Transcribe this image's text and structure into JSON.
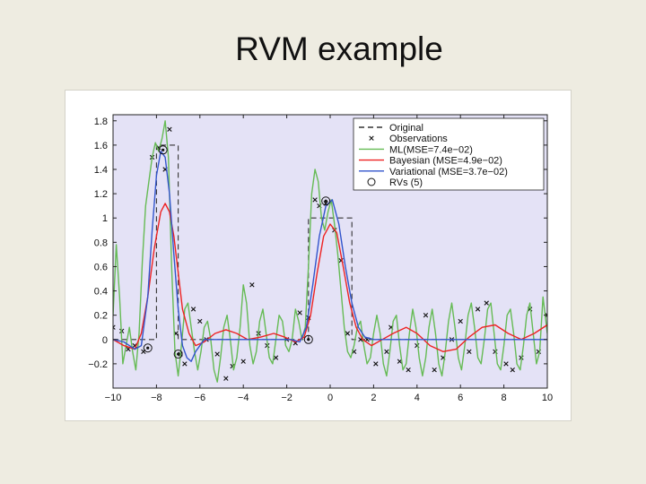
{
  "slide": {
    "title": "RVM example"
  },
  "chart_data": {
    "type": "line",
    "xlim": [
      -10,
      10
    ],
    "ylim": [
      -0.4,
      1.85
    ],
    "xticks": [
      -10,
      -8,
      -6,
      -4,
      -2,
      0,
      2,
      4,
      6,
      8,
      10
    ],
    "xtick_labels": [
      "-10",
      "-8",
      "-6",
      "-4",
      "-2",
      "0",
      "2",
      "4",
      "6",
      "8",
      "10"
    ],
    "yticks": [
      -0.2,
      0,
      0.2,
      0.4,
      0.6,
      0.8,
      1,
      1.2,
      1.4,
      1.6,
      1.8
    ],
    "ytick_labels": [
      "-0.2",
      "0",
      "0.2",
      "0.4",
      "0.6",
      "0.8",
      "1",
      "1.2",
      "1.4",
      "1.6",
      "1.8"
    ],
    "legend_position": "top-right",
    "colors": {
      "plot_background": "#e4e2f6",
      "original": "#333333",
      "ml": "#66bb55",
      "bayesian": "#ee2222",
      "variational": "#3355cc"
    },
    "series": [
      {
        "name": "Original",
        "style": "dashed",
        "x": [
          -10,
          -8,
          -8,
          -7,
          -7,
          -1,
          -1,
          1,
          1,
          10
        ],
        "y": [
          0,
          0,
          1.6,
          1.6,
          0,
          0,
          1,
          1,
          0,
          0
        ]
      },
      {
        "name": "Observations",
        "style": "markers",
        "x": [
          -10,
          -9.6,
          -9.3,
          -9,
          -8.6,
          -8.2,
          -7.9,
          -7.6,
          -7.4,
          -7.1,
          -6.9,
          -6.7,
          -6.3,
          -6,
          -5.7,
          -5.2,
          -4.8,
          -4.5,
          -4,
          -3.6,
          -3.3,
          -2.9,
          -2.5,
          -2,
          -1.6,
          -1.4,
          -1,
          -0.7,
          -0.5,
          -0.2,
          0.2,
          0.5,
          0.8,
          1.1,
          1.4,
          1.7,
          2.1,
          2.6,
          2.8,
          3.2,
          3.6,
          4,
          4.4,
          4.8,
          5.2,
          5.6,
          6,
          6.4,
          6.8,
          7.2,
          7.6,
          8.1,
          8.4,
          8.8,
          9.2,
          9.6,
          10
        ],
        "y": [
          0.1,
          0.07,
          -0.08,
          -0.05,
          -0.1,
          1.5,
          1.58,
          1.4,
          1.73,
          0.05,
          -0.12,
          -0.2,
          0.25,
          0.15,
          0.0,
          -0.12,
          -0.32,
          -0.22,
          -0.18,
          0.45,
          0.05,
          -0.05,
          -0.15,
          0.0,
          -0.03,
          0.22,
          0.18,
          1.15,
          1.1,
          1.12,
          0.9,
          0.65,
          0.05,
          -0.1,
          0.0,
          0.0,
          -0.2,
          -0.1,
          0.1,
          -0.18,
          -0.25,
          -0.05,
          0.2,
          -0.25,
          -0.15,
          0.0,
          0.15,
          -0.1,
          0.25,
          0.3,
          -0.1,
          -0.2,
          -0.25,
          -0.15,
          0.25,
          -0.1,
          0.2
        ]
      },
      {
        "name": "ML(MSE=7.4e−02)",
        "style": "solid",
        "x": [
          -10,
          -9.85,
          -9.7,
          -9.55,
          -9.4,
          -9.25,
          -9.1,
          -8.95,
          -8.8,
          -8.65,
          -8.5,
          -8.35,
          -8.2,
          -8.05,
          -7.9,
          -7.75,
          -7.6,
          -7.45,
          -7.3,
          -7.15,
          -7,
          -6.85,
          -6.7,
          -6.55,
          -6.4,
          -6.25,
          -6.1,
          -5.95,
          -5.8,
          -5.65,
          -5.5,
          -5.35,
          -5.2,
          -5.05,
          -4.9,
          -4.75,
          -4.6,
          -4.45,
          -4.3,
          -4.15,
          -4,
          -3.85,
          -3.7,
          -3.55,
          -3.4,
          -3.25,
          -3.1,
          -2.95,
          -2.8,
          -2.65,
          -2.5,
          -2.35,
          -2.2,
          -2.05,
          -1.9,
          -1.75,
          -1.6,
          -1.45,
          -1.3,
          -1.15,
          -1,
          -0.85,
          -0.7,
          -0.55,
          -0.4,
          -0.25,
          -0.1,
          0.05,
          0.2,
          0.35,
          0.5,
          0.65,
          0.8,
          0.95,
          1.1,
          1.25,
          1.4,
          1.55,
          1.7,
          1.85,
          2,
          2.15,
          2.3,
          2.45,
          2.6,
          2.75,
          2.9,
          3.05,
          3.2,
          3.35,
          3.5,
          3.65,
          3.8,
          3.95,
          4.1,
          4.25,
          4.4,
          4.55,
          4.7,
          4.85,
          5,
          5.15,
          5.3,
          5.45,
          5.6,
          5.75,
          5.9,
          6.05,
          6.2,
          6.35,
          6.5,
          6.65,
          6.8,
          6.95,
          7.1,
          7.25,
          7.4,
          7.55,
          7.7,
          7.85,
          8,
          8.15,
          8.3,
          8.45,
          8.6,
          8.75,
          8.9,
          9.05,
          9.2,
          9.35,
          9.5,
          9.65,
          9.8,
          10
        ],
        "y": [
          0.2,
          0.78,
          0.35,
          -0.2,
          -0.05,
          0.1,
          -0.1,
          -0.25,
          0.05,
          0.65,
          1.1,
          1.3,
          1.5,
          1.62,
          1.55,
          1.65,
          1.8,
          1.5,
          0.6,
          -0.1,
          -0.3,
          -0.05,
          0.25,
          0.3,
          0.1,
          -0.1,
          -0.25,
          -0.1,
          0.1,
          0.15,
          0.0,
          -0.25,
          -0.35,
          -0.15,
          0.1,
          0.2,
          0.0,
          -0.25,
          -0.15,
          0.1,
          0.45,
          0.3,
          -0.05,
          -0.2,
          -0.1,
          0.15,
          0.25,
          0.05,
          -0.15,
          -0.2,
          0.0,
          0.2,
          0.15,
          -0.05,
          -0.1,
          0.0,
          0.25,
          0.15,
          0.0,
          0.1,
          0.6,
          1.2,
          1.4,
          1.3,
          1.0,
          0.9,
          1.05,
          1.15,
          0.95,
          0.7,
          0.4,
          0.1,
          -0.1,
          -0.15,
          -0.05,
          0.1,
          0.15,
          -0.05,
          -0.2,
          -0.15,
          0.05,
          0.2,
          0.05,
          -0.2,
          -0.3,
          -0.1,
          0.15,
          0.2,
          -0.05,
          -0.25,
          -0.2,
          0.05,
          0.25,
          0.1,
          -0.15,
          -0.3,
          -0.15,
          0.1,
          0.25,
          0.05,
          -0.2,
          -0.3,
          -0.1,
          0.15,
          0.3,
          0.1,
          -0.15,
          -0.25,
          -0.05,
          0.2,
          0.3,
          0.1,
          -0.15,
          -0.2,
          0.0,
          0.25,
          0.3,
          0.05,
          -0.2,
          -0.25,
          -0.05,
          0.2,
          0.25,
          0.05,
          -0.2,
          -0.25,
          -0.05,
          0.2,
          0.3,
          0.05,
          -0.2,
          -0.1,
          0.35,
          0.05
        ]
      },
      {
        "name": "Bayesian (MSE=4.9e−02)",
        "style": "solid",
        "x": [
          -10,
          -9.5,
          -9,
          -8.7,
          -8.4,
          -8.1,
          -7.8,
          -7.6,
          -7.4,
          -7.2,
          -7,
          -6.8,
          -6.5,
          -6.2,
          -5.8,
          -5.3,
          -4.8,
          -4.3,
          -3.8,
          -3.2,
          -2.6,
          -2.1,
          -1.6,
          -1.2,
          -0.9,
          -0.6,
          -0.3,
          0,
          0.3,
          0.6,
          0.9,
          1.2,
          1.5,
          1.9,
          2.4,
          2.9,
          3.5,
          4,
          4.6,
          5.2,
          5.8,
          6.4,
          7,
          7.6,
          8.2,
          8.8,
          9.4,
          10
        ],
        "y": [
          0.0,
          -0.05,
          -0.08,
          0.05,
          0.35,
          0.75,
          1.05,
          1.12,
          1.05,
          0.85,
          0.55,
          0.25,
          0.05,
          -0.05,
          -0.02,
          0.05,
          0.08,
          0.05,
          0.0,
          0.02,
          0.05,
          0.02,
          -0.02,
          0.02,
          0.2,
          0.55,
          0.85,
          0.95,
          0.88,
          0.6,
          0.3,
          0.1,
          0.0,
          -0.05,
          0.0,
          0.05,
          0.1,
          0.05,
          -0.05,
          -0.1,
          -0.08,
          0.02,
          0.1,
          0.12,
          0.05,
          0.0,
          0.05,
          0.12
        ]
      },
      {
        "name": "Variational (MSE=3.7e−02)",
        "style": "solid",
        "x": [
          -10,
          -9.5,
          -9,
          -8.7,
          -8.4,
          -8.2,
          -8,
          -7.8,
          -7.6,
          -7.4,
          -7.2,
          -7,
          -6.8,
          -6.6,
          -6.4,
          -6.2,
          -5.8,
          -5.3,
          -4.5,
          -3.5,
          -2.5,
          -1.8,
          -1.4,
          -1.1,
          -0.8,
          -0.5,
          -0.2,
          0.1,
          0.4,
          0.7,
          1,
          1.3,
          1.6,
          2,
          3,
          4,
          5,
          6,
          7,
          8,
          9,
          10
        ],
        "y": [
          0.0,
          -0.02,
          -0.08,
          -0.05,
          0.35,
          0.9,
          1.35,
          1.55,
          1.5,
          1.2,
          0.7,
          0.25,
          -0.05,
          -0.15,
          -0.18,
          -0.1,
          0.0,
          0.0,
          0.0,
          0.0,
          0.0,
          0.0,
          -0.02,
          0.1,
          0.45,
          0.85,
          1.1,
          1.15,
          0.95,
          0.6,
          0.3,
          0.1,
          0.02,
          0.0,
          0.0,
          0.0,
          0.0,
          0.0,
          0.0,
          0.0,
          0.0,
          0.0
        ]
      },
      {
        "name": "RVs (5)",
        "style": "circles",
        "x": [
          -8.4,
          -7.7,
          -7,
          -1,
          -0.2
        ],
        "y": [
          -0.07,
          1.56,
          -0.12,
          0.0,
          1.14
        ]
      }
    ]
  }
}
